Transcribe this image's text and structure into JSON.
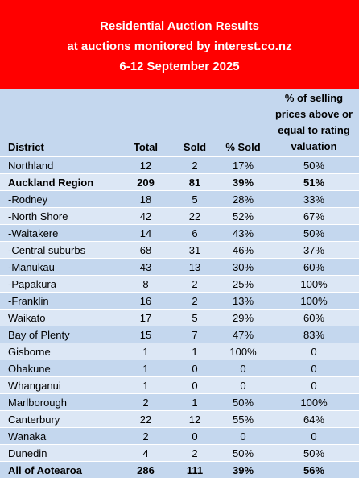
{
  "title": {
    "line1": "Residential Auction Results",
    "line2": "at auctions monitored by interest.co.nz",
    "line3": "6-12 September 2025"
  },
  "columns": {
    "district": "District",
    "total": "Total",
    "sold": "Sold",
    "pct_sold": "% Sold",
    "pct_above_1": "% of selling",
    "pct_above_2": "prices above or",
    "pct_above_3": "equal to rating",
    "pct_above_4": "valuation"
  },
  "rows": [
    {
      "district": "Northland",
      "total": "12",
      "sold": "2",
      "pct_sold": "17%",
      "pct_above": "50%",
      "bold": false
    },
    {
      "district": "Auckland Region",
      "total": "209",
      "sold": "81",
      "pct_sold": "39%",
      "pct_above": "51%",
      "bold": true
    },
    {
      "district": "-Rodney",
      "total": "18",
      "sold": "5",
      "pct_sold": "28%",
      "pct_above": "33%",
      "bold": false
    },
    {
      "district": "-North Shore",
      "total": "42",
      "sold": "22",
      "pct_sold": "52%",
      "pct_above": "67%",
      "bold": false
    },
    {
      "district": "-Waitakere",
      "total": "14",
      "sold": "6",
      "pct_sold": "43%",
      "pct_above": "50%",
      "bold": false
    },
    {
      "district": "-Central suburbs",
      "total": "68",
      "sold": "31",
      "pct_sold": "46%",
      "pct_above": "37%",
      "bold": false
    },
    {
      "district": "-Manukau",
      "total": "43",
      "sold": "13",
      "pct_sold": "30%",
      "pct_above": "60%",
      "bold": false
    },
    {
      "district": "-Papakura",
      "total": "8",
      "sold": "2",
      "pct_sold": "25%",
      "pct_above": "100%",
      "bold": false
    },
    {
      "district": "-Franklin",
      "total": "16",
      "sold": "2",
      "pct_sold": "13%",
      "pct_above": "100%",
      "bold": false
    },
    {
      "district": "Waikato",
      "total": "17",
      "sold": "5",
      "pct_sold": "29%",
      "pct_above": "60%",
      "bold": false
    },
    {
      "district": "Bay of Plenty",
      "total": "15",
      "sold": "7",
      "pct_sold": "47%",
      "pct_above": "83%",
      "bold": false
    },
    {
      "district": "Gisborne",
      "total": "1",
      "sold": "1",
      "pct_sold": "100%",
      "pct_above": "0",
      "bold": false
    },
    {
      "district": "Ohakune",
      "total": "1",
      "sold": "0",
      "pct_sold": "0",
      "pct_above": "0",
      "bold": false
    },
    {
      "district": "Whanganui",
      "total": "1",
      "sold": "0",
      "pct_sold": "0",
      "pct_above": "0",
      "bold": false
    },
    {
      "district": "Marlborough",
      "total": "2",
      "sold": "1",
      "pct_sold": "50%",
      "pct_above": "100%",
      "bold": false
    },
    {
      "district": "Canterbury",
      "total": "22",
      "sold": "12",
      "pct_sold": "55%",
      "pct_above": "64%",
      "bold": false
    },
    {
      "district": "Wanaka",
      "total": "2",
      "sold": "0",
      "pct_sold": "0",
      "pct_above": "0",
      "bold": false
    },
    {
      "district": "Dunedin",
      "total": "4",
      "sold": "2",
      "pct_sold": "50%",
      "pct_above": "50%",
      "bold": false
    },
    {
      "district": "All of Aotearoa",
      "total": "286",
      "sold": "111",
      "pct_sold": "39%",
      "pct_above": "56%",
      "bold": true
    }
  ],
  "colors": {
    "banner": "#ff0000",
    "banner_text": "#ffffff",
    "band_dark": "#c4d7ee",
    "band_light": "#dce7f5"
  }
}
